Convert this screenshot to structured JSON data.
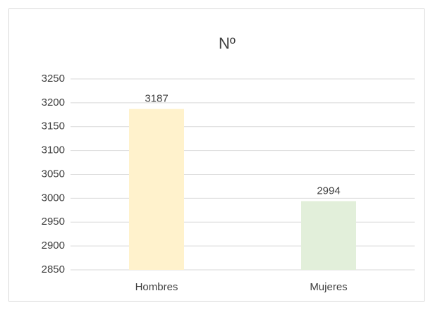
{
  "chart_data": {
    "type": "bar",
    "title": "Nº",
    "categories": [
      "Hombres",
      "Mujeres"
    ],
    "values": [
      3187,
      2994
    ],
    "colors": [
      "#fff2cc",
      "#e2efda"
    ],
    "ylim": [
      2850,
      3250
    ],
    "yticks": [
      2850,
      2900,
      2950,
      3000,
      3050,
      3100,
      3150,
      3200,
      3250
    ],
    "grid": true
  }
}
